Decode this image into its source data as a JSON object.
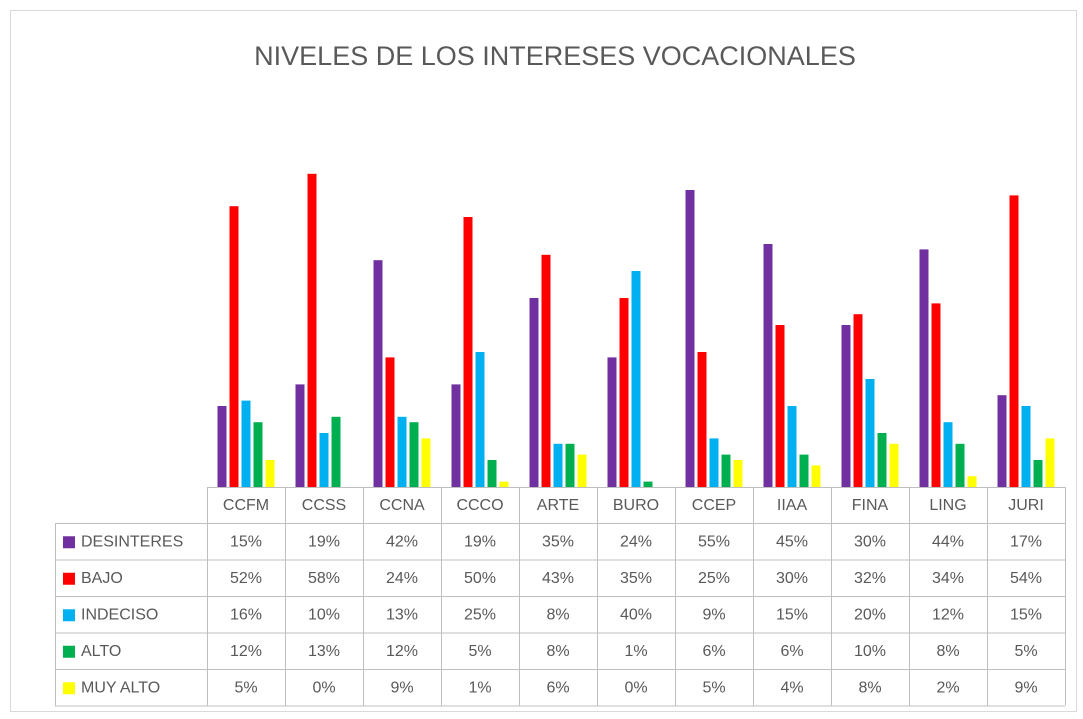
{
  "chart_data": {
    "type": "bar",
    "title": "NIVELES DE LOS INTERESES VOCACIONALES",
    "categories": [
      "CCFM",
      "CCSS",
      "CCNA",
      "CCCO",
      "ARTE",
      "BURO",
      "CCEP",
      "IIAA",
      "FINA",
      "LING",
      "JURI"
    ],
    "series": [
      {
        "name": "DESINTERES",
        "color": "#7030a0",
        "values": [
          15,
          19,
          42,
          19,
          35,
          24,
          55,
          45,
          30,
          44,
          17
        ],
        "value_labels": [
          "15%",
          "19%",
          "42%",
          "19%",
          "35%",
          "24%",
          "55%",
          "45%",
          "30%",
          "44%",
          "17%"
        ]
      },
      {
        "name": "BAJO",
        "color": "#ff0000",
        "values": [
          52,
          58,
          24,
          50,
          43,
          35,
          25,
          30,
          32,
          34,
          54
        ],
        "value_labels": [
          "52%",
          "58%",
          "24%",
          "50%",
          "43%",
          "35%",
          "25%",
          "30%",
          "32%",
          "34%",
          "54%"
        ]
      },
      {
        "name": "INDECISO",
        "color": "#00b0f0",
        "values": [
          16,
          10,
          13,
          25,
          8,
          40,
          9,
          15,
          20,
          12,
          15
        ],
        "value_labels": [
          "16%",
          "10%",
          "13%",
          "25%",
          "8%",
          "40%",
          "9%",
          "15%",
          "20%",
          "12%",
          "15%"
        ]
      },
      {
        "name": "ALTO",
        "color": "#00b050",
        "values": [
          12,
          13,
          12,
          5,
          8,
          1,
          6,
          6,
          10,
          8,
          5
        ],
        "value_labels": [
          "12%",
          "13%",
          "12%",
          "5%",
          "8%",
          "1%",
          "6%",
          "6%",
          "10%",
          "8%",
          "5%"
        ]
      },
      {
        "name": "MUY ALTO",
        "color": "#ffff00",
        "values": [
          5,
          0,
          9,
          1,
          6,
          0,
          5,
          4,
          8,
          2,
          9
        ],
        "value_labels": [
          "5%",
          "0%",
          "9%",
          "1%",
          "6%",
          "0%",
          "5%",
          "4%",
          "8%",
          "2%",
          "9%"
        ]
      }
    ]
  }
}
